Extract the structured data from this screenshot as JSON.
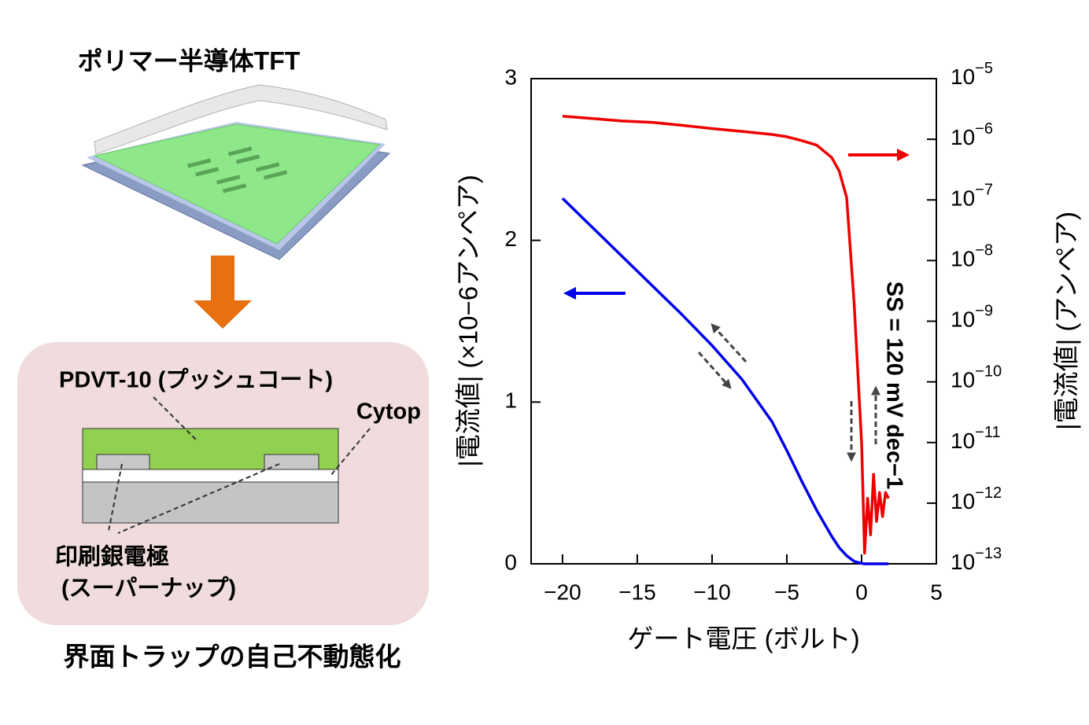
{
  "diagram": {
    "title": "ポリマー半導体TFT",
    "layer_label": "PDVT-10 (プッシュコート)",
    "insulator_label": "Cytop",
    "electrode_label": "印刷銀電極",
    "electrode_sublabel": "(スーパーナップ)",
    "caption": "界面トラップの自己不動態化"
  },
  "chart_data": {
    "type": "line",
    "xlabel": "ゲート電圧 (ボルト)",
    "ylabel": "|電流値| (×10−6アンペア)",
    "y2label": "|電流値| (アンペア)",
    "annotation": "SS = 120 mV dec−1",
    "x": [
      -20,
      -18,
      -16,
      -14,
      -12,
      -10,
      -8,
      -6,
      -5,
      -4,
      -3,
      -2,
      -1.5,
      -1,
      -0.5,
      0,
      0.2,
      0.4,
      0.6,
      0.8,
      1,
      1.2,
      1.4,
      1.6,
      1.8
    ],
    "xlim": [
      -22.1,
      5
    ],
    "xticks": [
      {
        "value": -20,
        "label": "−20"
      },
      {
        "value": -15,
        "label": "−15"
      },
      {
        "value": -10,
        "label": "−10"
      },
      {
        "value": -5,
        "label": "−5"
      },
      0,
      5
    ],
    "ylim": [
      0,
      3
    ],
    "yticks": [
      0,
      1,
      2,
      3
    ],
    "y2lim": [
      1e-13,
      1e-05
    ],
    "y2scale": "log",
    "y2ticks": [
      {
        "value": 1e-13,
        "label": "10−13"
      },
      {
        "value": 1e-12,
        "label": "10−12"
      },
      {
        "value": 1e-11,
        "label": "10−11"
      },
      {
        "value": 1e-10,
        "label": "10−10"
      },
      {
        "value": 1e-09,
        "label": "10−9"
      },
      {
        "value": 1e-08,
        "label": "10−8"
      },
      {
        "value": 1e-07,
        "label": "10−7"
      },
      {
        "value": 1e-06,
        "label": "10−6"
      },
      {
        "value": 1e-05,
        "label": "10−5"
      }
    ],
    "series": [
      {
        "color": "#0000ee",
        "axis": "y",
        "values": [
          2.26,
          2.08,
          1.9,
          1.72,
          1.54,
          1.35,
          1.14,
          0.88,
          0.7,
          0.51,
          0.33,
          0.17,
          0.1,
          0.05,
          0.015,
          0.003,
          0,
          0,
          0,
          0,
          0,
          0,
          0,
          0,
          0
        ]
      },
      {
        "color": "#ee0000",
        "axis": "y2",
        "values": [
          2.4e-06,
          2.2e-06,
          2e-06,
          1.9e-06,
          1.7e-06,
          1.5e-06,
          1.35e-06,
          1.2e-06,
          1.1e-06,
          9.5e-07,
          8e-07,
          5e-07,
          3e-07,
          1.1e-07,
          2e-09,
          1e-11,
          1.5e-13,
          1.2e-12,
          3e-13,
          3e-12,
          5e-13,
          1.5e-12,
          6e-13,
          1.5e-12,
          1.2e-12
        ]
      }
    ]
  }
}
